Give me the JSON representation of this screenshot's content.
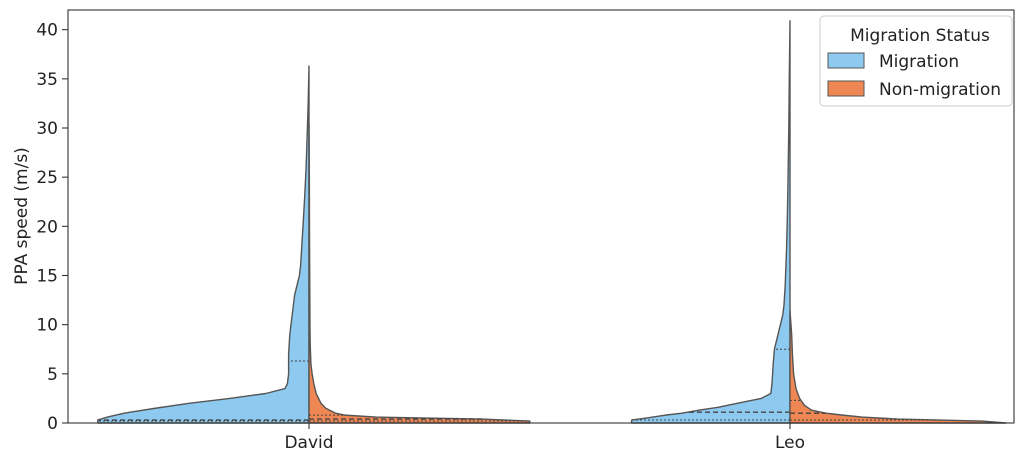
{
  "chart_data": {
    "type": "violin",
    "split": true,
    "title": "",
    "xlabel": "",
    "ylabel": "PPA speed (m/s)",
    "ylim": [
      0,
      42
    ],
    "yticks": [
      0,
      5,
      10,
      15,
      20,
      25,
      30,
      35,
      40
    ],
    "categories": [
      "David",
      "Leo"
    ],
    "grid": false,
    "legend": {
      "title": "Migration Status",
      "placement": "top-right",
      "entries": [
        "Migration",
        "Non-migration"
      ]
    },
    "colors": {
      "Migration": "#8ecaf0",
      "Non-migration": "#ee8754",
      "outline": "#555555"
    },
    "series": [
      {
        "name": "Migration",
        "side": "left",
        "violins": [
          {
            "category": "David",
            "max": 36.3,
            "quartiles": {
              "q1": 0.2,
              "median": 0.3,
              "q3": 6.3
            },
            "profile": [
              [
                0,
                0.88
              ],
              [
                0.3,
                0.88
              ],
              [
                0.6,
                0.84
              ],
              [
                1,
                0.77
              ],
              [
                1.5,
                0.64
              ],
              [
                2,
                0.5
              ],
              [
                2.5,
                0.33
              ],
              [
                3,
                0.18
              ],
              [
                3.5,
                0.1
              ],
              [
                4,
                0.09
              ],
              [
                5,
                0.085
              ],
              [
                7,
                0.085
              ],
              [
                9,
                0.08
              ],
              [
                11,
                0.07
              ],
              [
                13,
                0.06
              ],
              [
                14,
                0.05
              ],
              [
                15,
                0.04
              ],
              [
                16,
                0.035
              ],
              [
                18,
                0.03
              ],
              [
                20,
                0.025
              ],
              [
                23,
                0.018
              ],
              [
                26,
                0.012
              ],
              [
                29,
                0.008
              ],
              [
                32,
                0.004
              ],
              [
                36.3,
                0
              ]
            ]
          },
          {
            "category": "Leo",
            "max": 40.9,
            "quartiles": {
              "q1": 0.3,
              "median": 1.1,
              "q3": 7.5
            },
            "profile": [
              [
                0,
                0.66
              ],
              [
                0.3,
                0.66
              ],
              [
                0.5,
                0.6
              ],
              [
                0.8,
                0.52
              ],
              [
                1,
                0.45
              ],
              [
                1.3,
                0.38
              ],
              [
                1.6,
                0.3
              ],
              [
                2,
                0.22
              ],
              [
                2.5,
                0.12
              ],
              [
                3,
                0.08
              ],
              [
                4,
                0.075
              ],
              [
                6,
                0.07
              ],
              [
                7.5,
                0.065
              ],
              [
                9,
                0.05
              ],
              [
                10,
                0.04
              ],
              [
                11,
                0.03
              ],
              [
                12,
                0.025
              ],
              [
                14,
                0.02
              ],
              [
                16,
                0.017
              ],
              [
                18,
                0.014
              ],
              [
                21,
                0.011
              ],
              [
                25,
                0.008
              ],
              [
                30,
                0.005
              ],
              [
                35,
                0.003
              ],
              [
                40.9,
                0
              ]
            ]
          }
        ]
      },
      {
        "name": "Non-migration",
        "side": "right",
        "violins": [
          {
            "category": "David",
            "max": 30.4,
            "quartiles": {
              "q1": 0.2,
              "median": 0.4,
              "q3": 0.8
            },
            "profile": [
              [
                0,
                0.92
              ],
              [
                0.2,
                0.92
              ],
              [
                0.4,
                0.72
              ],
              [
                0.6,
                0.28
              ],
              [
                0.8,
                0.15
              ],
              [
                1,
                0.11
              ],
              [
                1.5,
                0.07
              ],
              [
                2,
                0.05
              ],
              [
                3,
                0.03
              ],
              [
                4,
                0.02
              ],
              [
                5,
                0.013
              ],
              [
                6,
                0.008
              ],
              [
                8,
                0.005
              ],
              [
                10,
                0.004
              ],
              [
                15,
                0.003
              ],
              [
                20,
                0.002
              ],
              [
                25,
                0.0015
              ],
              [
                30.4,
                0
              ]
            ]
          },
          {
            "category": "Leo",
            "max": 11.4,
            "quartiles": {
              "q1": 0.3,
              "median": 1.0,
              "q3": 2.3
            },
            "profile": [
              [
                0,
                0.9
              ],
              [
                0.2,
                0.8
              ],
              [
                0.4,
                0.45
              ],
              [
                0.6,
                0.3
              ],
              [
                0.8,
                0.22
              ],
              [
                1,
                0.15
              ],
              [
                1.3,
                0.09
              ],
              [
                1.8,
                0.06
              ],
              [
                2.5,
                0.04
              ],
              [
                3.5,
                0.025
              ],
              [
                5,
                0.015
              ],
              [
                7,
                0.01
              ],
              [
                9,
                0.007
              ],
              [
                11.4,
                0
              ]
            ]
          }
        ]
      }
    ]
  }
}
